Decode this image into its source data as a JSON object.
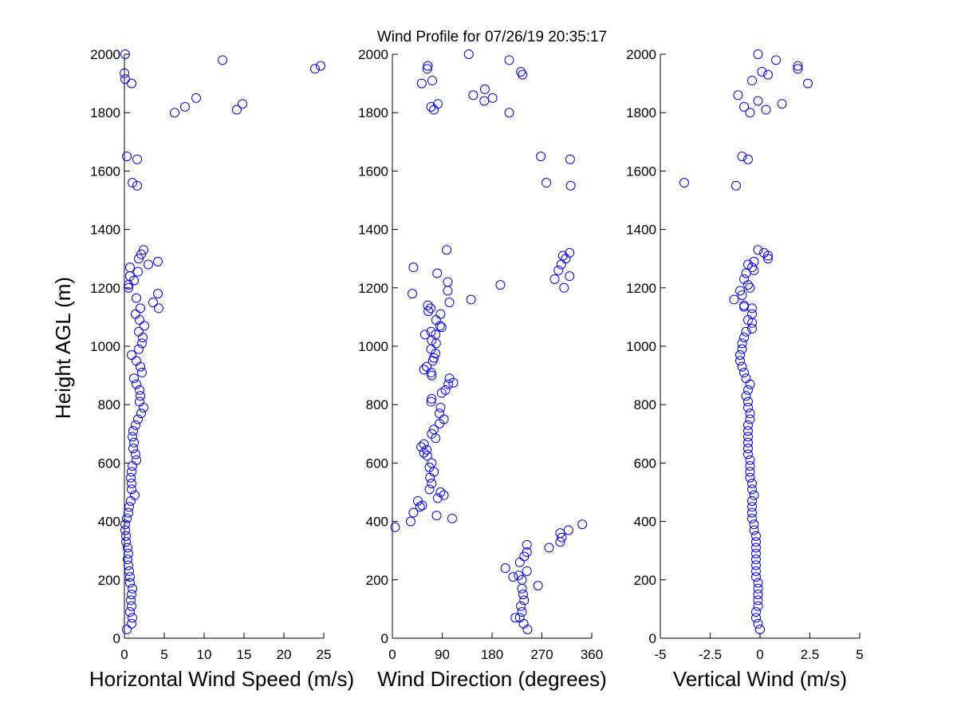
{
  "figure": {
    "title": "Wind Profile for  07/26/19 20:35:17",
    "ylabel": "Height AGL (m)"
  },
  "chart_data": [
    {
      "type": "scatter",
      "xlabel": "Horizontal Wind Speed (m/s)",
      "ylabel": "Height AGL (m)",
      "xlim": [
        0,
        25
      ],
      "ylim": [
        0,
        2000
      ],
      "xticks": [
        0,
        5,
        10,
        15,
        20,
        25
      ],
      "xtick_labels": [
        "0",
        "5",
        "10",
        "15",
        "20",
        "25"
      ],
      "yticks": [
        0,
        200,
        400,
        600,
        800,
        1000,
        1200,
        1400,
        1600,
        1800,
        2000
      ],
      "ytick_labels": [
        "0",
        "200",
        "400",
        "600",
        "800",
        "1000",
        "1200",
        "1400",
        "1600",
        "1800",
        "2000"
      ],
      "marker": "open-circle",
      "color": "#0000ff",
      "points": [
        [
          0.3,
          30
        ],
        [
          0.9,
          50
        ],
        [
          1.0,
          70
        ],
        [
          0.7,
          90
        ],
        [
          0.9,
          110
        ],
        [
          0.8,
          130
        ],
        [
          0.9,
          150
        ],
        [
          1.0,
          170
        ],
        [
          0.7,
          190
        ],
        [
          0.7,
          210
        ],
        [
          0.6,
          230
        ],
        [
          0.5,
          250
        ],
        [
          0.4,
          270
        ],
        [
          0.5,
          290
        ],
        [
          0.4,
          310
        ],
        [
          0.2,
          330
        ],
        [
          0.2,
          350
        ],
        [
          0.1,
          370
        ],
        [
          0.1,
          390
        ],
        [
          0.3,
          410
        ],
        [
          0.5,
          430
        ],
        [
          0.6,
          450
        ],
        [
          0.8,
          470
        ],
        [
          1.3,
          490
        ],
        [
          0.9,
          510
        ],
        [
          0.9,
          530
        ],
        [
          0.8,
          550
        ],
        [
          0.9,
          570
        ],
        [
          1.0,
          590
        ],
        [
          1.5,
          610
        ],
        [
          1.4,
          630
        ],
        [
          1.1,
          650
        ],
        [
          1.2,
          670
        ],
        [
          1.0,
          690
        ],
        [
          1.1,
          710
        ],
        [
          1.4,
          730
        ],
        [
          1.7,
          750
        ],
        [
          2.1,
          770
        ],
        [
          2.4,
          790
        ],
        [
          1.9,
          810
        ],
        [
          2.0,
          830
        ],
        [
          1.9,
          850
        ],
        [
          1.5,
          870
        ],
        [
          1.2,
          890
        ],
        [
          2.2,
          910
        ],
        [
          2.0,
          930
        ],
        [
          1.5,
          950
        ],
        [
          0.9,
          970
        ],
        [
          1.8,
          990
        ],
        [
          2.2,
          1010
        ],
        [
          2.3,
          1030
        ],
        [
          1.8,
          1050
        ],
        [
          2.5,
          1070
        ],
        [
          1.9,
          1090
        ],
        [
          1.4,
          1110
        ],
        [
          2.0,
          1130
        ],
        [
          3.6,
          1150
        ],
        [
          1.5,
          1165
        ],
        [
          4.2,
          1180
        ],
        [
          4.3,
          1130
        ],
        [
          0.5,
          1200
        ],
        [
          0.5,
          1210
        ],
        [
          1.2,
          1225
        ],
        [
          0.7,
          1240
        ],
        [
          1.7,
          1255
        ],
        [
          0.7,
          1270
        ],
        [
          3.0,
          1280
        ],
        [
          4.2,
          1290
        ],
        [
          1.8,
          1300
        ],
        [
          2.1,
          1315
        ],
        [
          2.4,
          1330
        ],
        [
          0.3,
          1650
        ],
        [
          1.6,
          1640
        ],
        [
          1.0,
          1560
        ],
        [
          1.6,
          1550
        ],
        [
          6.3,
          1800
        ],
        [
          14.1,
          1810
        ],
        [
          7.6,
          1820
        ],
        [
          14.8,
          1830
        ],
        [
          9.0,
          1850
        ],
        [
          0.9,
          1900
        ],
        [
          0.1,
          1915
        ],
        [
          0.0,
          1935
        ],
        [
          23.9,
          1950
        ],
        [
          24.6,
          1960
        ],
        [
          12.3,
          1980
        ],
        [
          0.1,
          2000
        ]
      ]
    },
    {
      "type": "scatter",
      "xlabel": "Wind Direction (degrees)",
      "ylabel": "",
      "xlim": [
        0,
        360
      ],
      "ylim": [
        0,
        2000
      ],
      "xticks": [
        0,
        90,
        180,
        270,
        360
      ],
      "xtick_labels": [
        "0",
        "90",
        "180",
        "270",
        "360"
      ],
      "yticks": [
        0,
        200,
        400,
        600,
        800,
        1000,
        1200,
        1400,
        1600,
        1800,
        2000
      ],
      "ytick_labels": [
        "0",
        "200",
        "400",
        "600",
        "800",
        "1000",
        "1200",
        "1400",
        "1600",
        "1800",
        "2000"
      ],
      "marker": "open-circle",
      "color": "#0000ff",
      "points": [
        [
          244,
          30
        ],
        [
          237,
          50
        ],
        [
          230,
          70
        ],
        [
          222,
          70
        ],
        [
          234,
          90
        ],
        [
          232,
          110
        ],
        [
          238,
          130
        ],
        [
          236,
          150
        ],
        [
          234,
          170
        ],
        [
          263,
          180
        ],
        [
          234,
          200
        ],
        [
          218,
          210
        ],
        [
          228,
          215
        ],
        [
          204,
          240
        ],
        [
          243,
          230
        ],
        [
          230,
          260
        ],
        [
          238,
          280
        ],
        [
          243,
          295
        ],
        [
          283,
          310
        ],
        [
          243,
          320
        ],
        [
          303,
          330
        ],
        [
          306,
          345
        ],
        [
          303,
          360
        ],
        [
          318,
          370
        ],
        [
          5,
          380
        ],
        [
          343,
          390
        ],
        [
          33,
          400
        ],
        [
          108,
          410
        ],
        [
          80,
          420
        ],
        [
          38,
          430
        ],
        [
          50,
          450
        ],
        [
          54,
          455
        ],
        [
          46,
          470
        ],
        [
          82,
          480
        ],
        [
          93,
          490
        ],
        [
          87,
          500
        ],
        [
          67,
          510
        ],
        [
          71,
          530
        ],
        [
          68,
          550
        ],
        [
          75,
          570
        ],
        [
          67,
          585
        ],
        [
          71,
          600
        ],
        [
          63,
          625
        ],
        [
          57,
          635
        ],
        [
          62,
          645
        ],
        [
          52,
          655
        ],
        [
          57,
          665
        ],
        [
          78,
          685
        ],
        [
          71,
          700
        ],
        [
          75,
          715
        ],
        [
          85,
          735
        ],
        [
          93,
          750
        ],
        [
          85,
          770
        ],
        [
          87,
          790
        ],
        [
          70,
          810
        ],
        [
          71,
          820
        ],
        [
          89,
          840
        ],
        [
          96,
          850
        ],
        [
          101,
          870
        ],
        [
          110,
          875
        ],
        [
          103,
          890
        ],
        [
          57,
          920
        ],
        [
          62,
          930
        ],
        [
          70,
          910
        ],
        [
          71,
          900
        ],
        [
          73,
          950
        ],
        [
          75,
          960
        ],
        [
          78,
          975
        ],
        [
          70,
          990
        ],
        [
          79,
          1010
        ],
        [
          71,
          1020
        ],
        [
          78,
          1040
        ],
        [
          70,
          1050
        ],
        [
          59,
          1040
        ],
        [
          89,
          1065
        ],
        [
          86,
          1070
        ],
        [
          79,
          1090
        ],
        [
          87,
          1110
        ],
        [
          65,
          1120
        ],
        [
          69,
          1130
        ],
        [
          64,
          1140
        ],
        [
          103,
          1150
        ],
        [
          142,
          1160
        ],
        [
          36,
          1180
        ],
        [
          100,
          1190
        ],
        [
          195,
          1210
        ],
        [
          100,
          1220
        ],
        [
          81,
          1250
        ],
        [
          38,
          1270
        ],
        [
          320,
          1240
        ],
        [
          293,
          1230
        ],
        [
          300,
          1260
        ],
        [
          305,
          1280
        ],
        [
          313,
          1300
        ],
        [
          308,
          1310
        ],
        [
          320,
          1320
        ],
        [
          98,
          1330
        ],
        [
          310,
          1200
        ],
        [
          268,
          1650
        ],
        [
          321,
          1640
        ],
        [
          278,
          1560
        ],
        [
          322,
          1550
        ],
        [
          211,
          1800
        ],
        [
          75,
          1810
        ],
        [
          70,
          1820
        ],
        [
          82,
          1830
        ],
        [
          181,
          1850
        ],
        [
          146,
          1860
        ],
        [
          166,
          1840
        ],
        [
          167,
          1880
        ],
        [
          53,
          1900
        ],
        [
          72,
          1910
        ],
        [
          235,
          1930
        ],
        [
          232,
          1940
        ],
        [
          63,
          1950
        ],
        [
          64,
          1960
        ],
        [
          211,
          1980
        ],
        [
          138,
          2000
        ]
      ]
    },
    {
      "type": "scatter",
      "xlabel": "Vertical Wind (m/s)",
      "ylabel": "",
      "xlim": [
        -5,
        5
      ],
      "ylim": [
        0,
        2000
      ],
      "xticks": [
        -5,
        -2.5,
        0,
        2.5,
        5
      ],
      "xtick_labels": [
        "-5",
        "-2.5",
        "0",
        "2.5",
        "5"
      ],
      "yticks": [
        0,
        200,
        400,
        600,
        800,
        1000,
        1200,
        1400,
        1600,
        1800,
        2000
      ],
      "ytick_labels": [
        "0",
        "200",
        "400",
        "600",
        "800",
        "1000",
        "1200",
        "1400",
        "1600",
        "1800",
        "2000"
      ],
      "marker": "open-circle",
      "color": "#0000ff",
      "points": [
        [
          0.0,
          30
        ],
        [
          -0.1,
          50
        ],
        [
          -0.2,
          70
        ],
        [
          -0.2,
          90
        ],
        [
          -0.1,
          110
        ],
        [
          -0.1,
          130
        ],
        [
          -0.1,
          150
        ],
        [
          -0.1,
          170
        ],
        [
          -0.1,
          190
        ],
        [
          -0.2,
          210
        ],
        [
          -0.2,
          230
        ],
        [
          -0.2,
          250
        ],
        [
          -0.2,
          270
        ],
        [
          -0.2,
          290
        ],
        [
          -0.2,
          310
        ],
        [
          -0.2,
          330
        ],
        [
          -0.2,
          350
        ],
        [
          -0.3,
          370
        ],
        [
          -0.3,
          390
        ],
        [
          -0.4,
          410
        ],
        [
          -0.4,
          430
        ],
        [
          -0.4,
          450
        ],
        [
          -0.4,
          470
        ],
        [
          -0.3,
          490
        ],
        [
          -0.4,
          510
        ],
        [
          -0.4,
          530
        ],
        [
          -0.5,
          550
        ],
        [
          -0.5,
          570
        ],
        [
          -0.5,
          590
        ],
        [
          -0.5,
          610
        ],
        [
          -0.6,
          630
        ],
        [
          -0.6,
          650
        ],
        [
          -0.6,
          670
        ],
        [
          -0.6,
          690
        ],
        [
          -0.6,
          710
        ],
        [
          -0.6,
          730
        ],
        [
          -0.5,
          750
        ],
        [
          -0.5,
          770
        ],
        [
          -0.6,
          790
        ],
        [
          -0.6,
          810
        ],
        [
          -0.7,
          830
        ],
        [
          -0.6,
          850
        ],
        [
          -0.5,
          870
        ],
        [
          -0.7,
          890
        ],
        [
          -0.8,
          910
        ],
        [
          -0.9,
          930
        ],
        [
          -1.0,
          950
        ],
        [
          -1.0,
          970
        ],
        [
          -0.9,
          990
        ],
        [
          -0.9,
          1010
        ],
        [
          -0.8,
          1030
        ],
        [
          -0.7,
          1050
        ],
        [
          -0.4,
          1060
        ],
        [
          -0.4,
          1080
        ],
        [
          -0.6,
          1090
        ],
        [
          -0.4,
          1110
        ],
        [
          -0.4,
          1130
        ],
        [
          -0.8,
          1135
        ],
        [
          -0.8,
          1140
        ],
        [
          -1.3,
          1160
        ],
        [
          -0.9,
          1175
        ],
        [
          -1.0,
          1190
        ],
        [
          -0.5,
          1200
        ],
        [
          -0.6,
          1210
        ],
        [
          -0.8,
          1230
        ],
        [
          -0.7,
          1250
        ],
        [
          -0.3,
          1260
        ],
        [
          -0.4,
          1270
        ],
        [
          -0.6,
          1280
        ],
        [
          -0.3,
          1290
        ],
        [
          0.4,
          1300
        ],
        [
          0.4,
          1310
        ],
        [
          0.2,
          1320
        ],
        [
          -0.1,
          1330
        ],
        [
          -0.9,
          1650
        ],
        [
          -0.6,
          1640
        ],
        [
          -3.8,
          1560
        ],
        [
          -1.2,
          1550
        ],
        [
          -0.5,
          1800
        ],
        [
          0.3,
          1810
        ],
        [
          -0.8,
          1820
        ],
        [
          1.1,
          1830
        ],
        [
          -0.1,
          1840
        ],
        [
          -1.1,
          1860
        ],
        [
          2.4,
          1900
        ],
        [
          -0.4,
          1910
        ],
        [
          0.4,
          1930
        ],
        [
          0.1,
          1940
        ],
        [
          1.9,
          1950
        ],
        [
          1.9,
          1960
        ],
        [
          0.8,
          1980
        ],
        [
          -0.1,
          2000
        ]
      ]
    }
  ]
}
